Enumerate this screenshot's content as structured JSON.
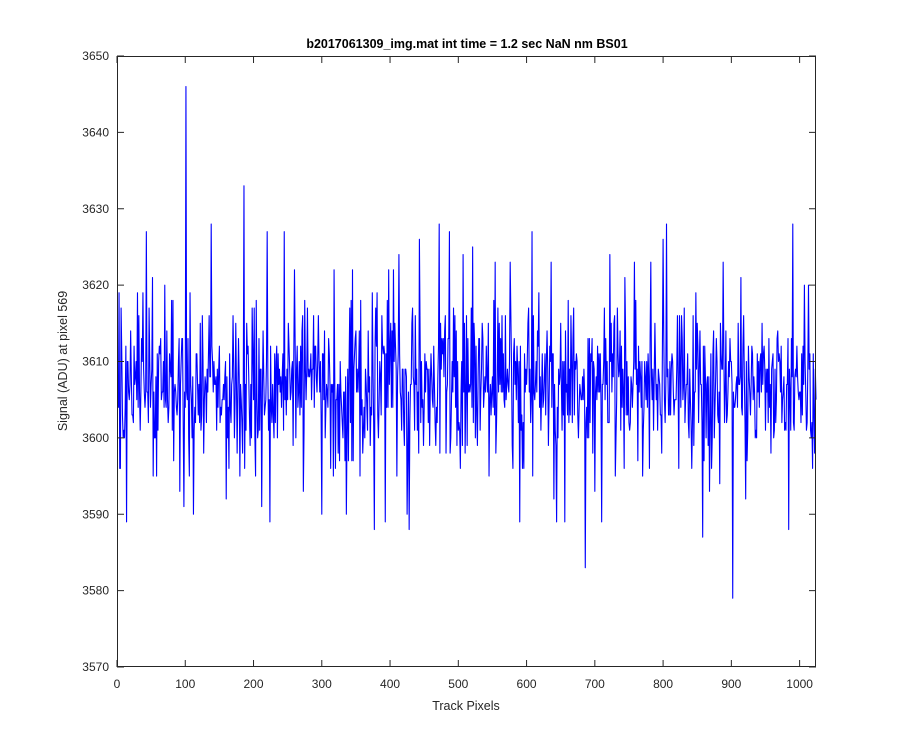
{
  "chart_data": {
    "type": "line",
    "title": "b2017061309_img.mat int time = 1.2 sec  NaN nm BS01",
    "xlabel": "Track Pixels",
    "ylabel": "Signal (ADU) at pixel 569",
    "xlim": [
      0,
      1024
    ],
    "ylim": [
      3570,
      3650
    ],
    "xticks": [
      0,
      100,
      200,
      300,
      400,
      500,
      600,
      700,
      800,
      900,
      1000
    ],
    "yticks": [
      3570,
      3580,
      3590,
      3600,
      3610,
      3620,
      3630,
      3640,
      3650
    ],
    "grid": false,
    "legend": "none",
    "series": [
      {
        "color": "#0000ff",
        "n_points": 1024,
        "baseline": 3607,
        "x_start": 1,
        "x_step": 1,
        "values_key_points": [
          [
            1,
            3607
          ],
          [
            4,
            3596
          ],
          [
            6,
            3617
          ],
          [
            9,
            3600
          ],
          [
            14,
            3589
          ],
          [
            20,
            3614
          ],
          [
            30,
            3619
          ],
          [
            43,
            3627
          ],
          [
            52,
            3621
          ],
          [
            58,
            3595
          ],
          [
            70,
            3620
          ],
          [
            80,
            3618
          ],
          [
            92,
            3593
          ],
          [
            98,
            3591
          ],
          [
            101,
            3646
          ],
          [
            103,
            3605
          ],
          [
            112,
            3590
          ],
          [
            138,
            3628
          ],
          [
            160,
            3592
          ],
          [
            186,
            3633
          ],
          [
            195,
            3599
          ],
          [
            212,
            3591
          ],
          [
            220,
            3627
          ],
          [
            224,
            3589
          ],
          [
            245,
            3627
          ],
          [
            260,
            3622
          ],
          [
            273,
            3593
          ],
          [
            300,
            3590
          ],
          [
            318,
            3622
          ],
          [
            336,
            3590
          ],
          [
            345,
            3622
          ],
          [
            377,
            3588
          ],
          [
            393,
            3589
          ],
          [
            398,
            3622
          ],
          [
            405,
            3622
          ],
          [
            413,
            3624
          ],
          [
            425,
            3590
          ],
          [
            428,
            3588
          ],
          [
            443,
            3626
          ],
          [
            472,
            3628
          ],
          [
            487,
            3627
          ],
          [
            507,
            3624
          ],
          [
            521,
            3625
          ],
          [
            554,
            3623
          ],
          [
            576,
            3623
          ],
          [
            590,
            3589
          ],
          [
            608,
            3627
          ],
          [
            636,
            3623
          ],
          [
            640,
            3592
          ],
          [
            644,
            3589
          ],
          [
            656,
            3589
          ],
          [
            686,
            3583
          ],
          [
            700,
            3593
          ],
          [
            710,
            3589
          ],
          [
            722,
            3624
          ],
          [
            744,
            3621
          ],
          [
            758,
            3623
          ],
          [
            782,
            3623
          ],
          [
            800,
            3626
          ],
          [
            805,
            3628
          ],
          [
            823,
            3596
          ],
          [
            840,
            3605
          ],
          [
            858,
            3587
          ],
          [
            868,
            3593
          ],
          [
            875,
            3600
          ],
          [
            883,
            3594
          ],
          [
            888,
            3623
          ],
          [
            902,
            3579
          ],
          [
            914,
            3621
          ],
          [
            921,
            3592
          ],
          [
            929,
            3607
          ],
          [
            945,
            3615
          ],
          [
            962,
            3600
          ],
          [
            975,
            3605
          ],
          [
            984,
            3588
          ],
          [
            990,
            3628
          ],
          [
            996,
            3612
          ],
          [
            1007,
            3620
          ],
          [
            1013,
            3620
          ],
          [
            1016,
            3601
          ],
          [
            1020,
            3611
          ],
          [
            1024,
            3605
          ]
        ]
      }
    ]
  }
}
